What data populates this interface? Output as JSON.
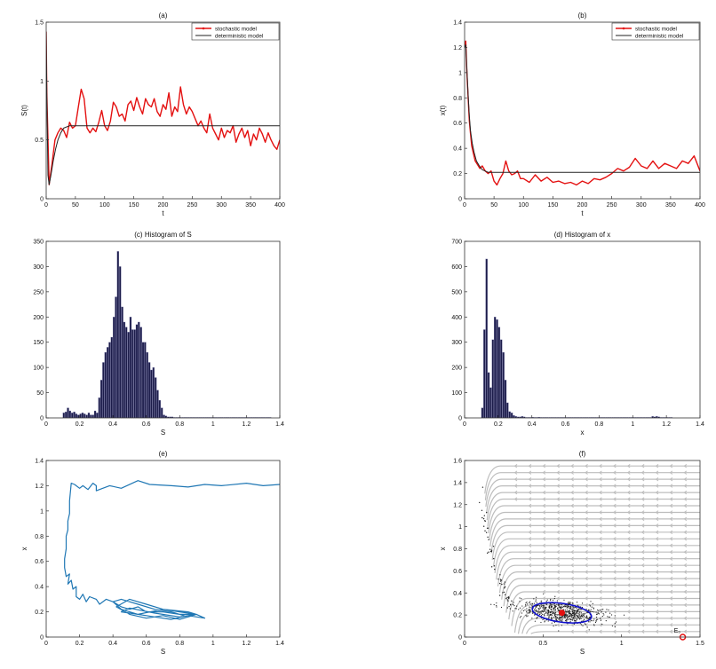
{
  "colors": {
    "stochastic": "#e41010",
    "deterministic": "#222222",
    "hist_fill": "#1c1c4a",
    "trajectory": "#1f77b4",
    "ellipse": "#1010cc",
    "stream": "#bdbdbd",
    "scatter": "#222222",
    "point": "#e41010"
  },
  "chart_data": [
    {
      "type": "line",
      "title": "(a)",
      "xlabel": "t",
      "ylabel": "S(t)",
      "xlim": [
        0,
        400
      ],
      "ylim": [
        0,
        1.5
      ],
      "xticks": [
        "0",
        "50",
        "100",
        "150",
        "200",
        "250",
        "300",
        "350",
        "400"
      ],
      "yticks": [
        "0",
        "0.5",
        "1",
        "1.5"
      ],
      "legend": {
        "position": "top-right",
        "entries": [
          "stochastic model",
          "deterministic model"
        ]
      },
      "series": [
        {
          "name": "stochastic model",
          "style": "stochastic",
          "x": [
            0,
            1,
            5,
            10,
            15,
            20,
            25,
            30,
            35,
            40,
            45,
            50,
            55,
            60,
            65,
            70,
            75,
            80,
            85,
            90,
            95,
            100,
            105,
            110,
            115,
            120,
            125,
            130,
            135,
            140,
            145,
            150,
            155,
            160,
            165,
            170,
            175,
            180,
            185,
            190,
            195,
            200,
            205,
            210,
            215,
            220,
            225,
            230,
            235,
            240,
            245,
            250,
            255,
            260,
            265,
            270,
            275,
            280,
            285,
            290,
            295,
            300,
            305,
            310,
            315,
            320,
            325,
            330,
            335,
            340,
            345,
            350,
            355,
            360,
            365,
            370,
            375,
            380,
            385,
            390,
            395,
            400
          ],
          "y": [
            1.42,
            0.9,
            0.12,
            0.3,
            0.5,
            0.56,
            0.6,
            0.58,
            0.52,
            0.65,
            0.6,
            0.62,
            0.78,
            0.93,
            0.85,
            0.6,
            0.56,
            0.6,
            0.57,
            0.65,
            0.75,
            0.62,
            0.58,
            0.66,
            0.82,
            0.78,
            0.7,
            0.72,
            0.66,
            0.8,
            0.83,
            0.75,
            0.86,
            0.78,
            0.72,
            0.85,
            0.8,
            0.78,
            0.85,
            0.74,
            0.7,
            0.8,
            0.76,
            0.9,
            0.7,
            0.78,
            0.74,
            0.95,
            0.8,
            0.72,
            0.78,
            0.74,
            0.68,
            0.62,
            0.66,
            0.6,
            0.56,
            0.72,
            0.6,
            0.55,
            0.5,
            0.6,
            0.52,
            0.58,
            0.56,
            0.62,
            0.48,
            0.55,
            0.6,
            0.52,
            0.58,
            0.45,
            0.55,
            0.5,
            0.6,
            0.55,
            0.48,
            0.56,
            0.5,
            0.45,
            0.42,
            0.5
          ]
        },
        {
          "name": "deterministic model",
          "style": "deterministic",
          "x": [
            0,
            1,
            3,
            5,
            8,
            12,
            16,
            20,
            25,
            30,
            40,
            50,
            60,
            80,
            120,
            200,
            300,
            400
          ],
          "y": [
            1.42,
            0.9,
            0.2,
            0.12,
            0.2,
            0.32,
            0.42,
            0.5,
            0.56,
            0.6,
            0.62,
            0.62,
            0.62,
            0.62,
            0.62,
            0.62,
            0.62,
            0.62
          ]
        }
      ]
    },
    {
      "type": "line",
      "title": "(b)",
      "xlabel": "t",
      "ylabel": "x(t)",
      "xlim": [
        0,
        400
      ],
      "ylim": [
        0,
        1.4
      ],
      "xticks": [
        "0",
        "50",
        "100",
        "150",
        "200",
        "250",
        "300",
        "350",
        "400"
      ],
      "yticks": [
        "0",
        "0.2",
        "0.4",
        "0.6",
        "0.8",
        "1",
        "1.2",
        "1.4"
      ],
      "legend": {
        "position": "top-right",
        "entries": [
          "stochastic model",
          "deterministic model"
        ]
      },
      "series": [
        {
          "name": "stochastic model",
          "style": "stochastic",
          "x": [
            0,
            2,
            4,
            6,
            8,
            10,
            12,
            15,
            18,
            22,
            26,
            30,
            35,
            40,
            45,
            50,
            55,
            60,
            65,
            70,
            75,
            80,
            85,
            90,
            95,
            100,
            110,
            120,
            130,
            140,
            150,
            160,
            170,
            180,
            190,
            200,
            210,
            220,
            230,
            240,
            250,
            260,
            270,
            280,
            290,
            300,
            310,
            320,
            330,
            340,
            350,
            360,
            370,
            380,
            390,
            400
          ],
          "y": [
            1.2,
            1.25,
            1.0,
            0.8,
            0.62,
            0.52,
            0.42,
            0.36,
            0.3,
            0.27,
            0.24,
            0.26,
            0.22,
            0.2,
            0.22,
            0.14,
            0.11,
            0.16,
            0.2,
            0.3,
            0.22,
            0.19,
            0.2,
            0.22,
            0.16,
            0.16,
            0.13,
            0.19,
            0.14,
            0.17,
            0.13,
            0.14,
            0.12,
            0.13,
            0.11,
            0.14,
            0.12,
            0.16,
            0.15,
            0.17,
            0.2,
            0.24,
            0.22,
            0.25,
            0.32,
            0.26,
            0.24,
            0.3,
            0.24,
            0.28,
            0.26,
            0.24,
            0.3,
            0.28,
            0.34,
            0.22
          ]
        },
        {
          "name": "deterministic model",
          "style": "deterministic",
          "x": [
            0,
            2,
            4,
            6,
            8,
            10,
            13,
            16,
            20,
            25,
            30,
            40,
            50,
            70,
            100,
            200,
            300,
            400
          ],
          "y": [
            1.2,
            1.22,
            1.02,
            0.82,
            0.66,
            0.54,
            0.44,
            0.37,
            0.3,
            0.26,
            0.23,
            0.21,
            0.21,
            0.21,
            0.21,
            0.21,
            0.21,
            0.21
          ]
        }
      ]
    },
    {
      "type": "bar",
      "title": "(c)    Histogram of S",
      "xlabel": "S",
      "ylabel": "",
      "xlim": [
        0,
        1.4
      ],
      "ylim": [
        0,
        350
      ],
      "xticks": [
        "0",
        "0.2",
        "0.4",
        "0.6",
        "0.8",
        "1",
        "1.2",
        "1.4"
      ],
      "yticks": [
        "0",
        "50",
        "100",
        "150",
        "200",
        "250",
        "300",
        "350"
      ],
      "bin_width": 0.0125,
      "bin_start": 0.1,
      "values": [
        10,
        12,
        20,
        14,
        10,
        12,
        8,
        6,
        8,
        10,
        8,
        6,
        10,
        6,
        6,
        14,
        10,
        40,
        75,
        110,
        130,
        140,
        150,
        160,
        200,
        240,
        330,
        300,
        220,
        190,
        180,
        170,
        200,
        175,
        175,
        185,
        190,
        180,
        150,
        150,
        130,
        110,
        95,
        100,
        80,
        55,
        35,
        20,
        6,
        4,
        2,
        2,
        2,
        1,
        1,
        1,
        1,
        1,
        1,
        1,
        1,
        1,
        1,
        1,
        1,
        1,
        1,
        1,
        1,
        1,
        1,
        1,
        1,
        1,
        1,
        1,
        1,
        1,
        1,
        1,
        1,
        1,
        1,
        1,
        1,
        1,
        1,
        1,
        1,
        1,
        1,
        1,
        1,
        1,
        1,
        1,
        1,
        1,
        1,
        1
      ]
    },
    {
      "type": "bar",
      "title": "(d)    Histogram of x",
      "xlabel": "x",
      "ylabel": "",
      "xlim": [
        0,
        1.4
      ],
      "ylim": [
        0,
        700
      ],
      "xticks": [
        "0",
        "0.2",
        "0.4",
        "0.6",
        "0.8",
        "1",
        "1.2",
        "1.4"
      ],
      "yticks": [
        "0",
        "100",
        "200",
        "300",
        "400",
        "500",
        "600",
        "700"
      ],
      "bin_width": 0.0125,
      "bin_start": 0.1,
      "values": [
        40,
        350,
        630,
        180,
        120,
        310,
        400,
        390,
        360,
        310,
        260,
        150,
        60,
        25,
        20,
        10,
        6,
        4,
        4,
        6,
        4,
        2,
        2,
        2,
        3,
        2,
        2,
        3,
        2,
        2,
        2,
        2,
        2,
        2,
        2,
        2,
        2,
        2,
        2,
        2,
        2,
        2,
        2,
        2,
        2,
        2,
        2,
        2,
        2,
        2,
        2,
        2,
        2,
        2,
        2,
        2,
        2,
        2,
        2,
        2,
        2,
        2,
        2,
        2,
        2,
        2,
        2,
        2,
        2,
        2,
        2,
        2,
        2,
        2,
        2,
        2,
        2,
        2,
        2,
        2,
        2,
        6,
        4,
        6,
        4,
        2,
        2,
        2,
        2,
        2,
        2
      ]
    },
    {
      "type": "line",
      "title": "(e)",
      "xlabel": "S",
      "ylabel": "x",
      "xlim": [
        0,
        1.4
      ],
      "ylim": [
        0,
        1.4
      ],
      "xticks": [
        "0",
        "0.2",
        "0.4",
        "0.6",
        "0.8",
        "1",
        "1.2",
        "1.4"
      ],
      "yticks": [
        "0",
        "0.2",
        "0.4",
        "0.6",
        "0.8",
        "1",
        "1.2",
        "1.4"
      ],
      "series": [
        {
          "name": "",
          "style": "trajectory",
          "x": [
            1.4,
            1.3,
            1.2,
            1.05,
            0.95,
            0.85,
            0.75,
            0.62,
            0.55,
            0.45,
            0.38,
            0.3,
            0.3,
            0.28,
            0.25,
            0.22,
            0.2,
            0.17,
            0.15,
            0.14,
            0.14,
            0.13,
            0.13,
            0.12,
            0.12,
            0.11,
            0.11,
            0.12,
            0.14,
            0.13,
            0.15,
            0.16,
            0.18,
            0.18,
            0.2,
            0.22,
            0.24,
            0.26,
            0.3,
            0.32,
            0.36,
            0.4,
            0.45,
            0.5,
            0.55,
            0.6,
            0.7,
            0.8,
            0.9,
            0.95,
            0.85,
            0.75,
            0.65,
            0.55,
            0.45,
            0.4,
            0.45,
            0.55,
            0.65,
            0.75,
            0.85,
            0.9,
            0.8,
            0.7,
            0.6,
            0.5,
            0.42,
            0.5,
            0.6,
            0.7,
            0.8,
            0.9,
            0.85,
            0.7,
            0.55,
            0.45,
            0.5,
            0.65,
            0.8,
            0.9
          ],
          "y": [
            1.21,
            1.2,
            1.22,
            1.2,
            1.21,
            1.19,
            1.2,
            1.21,
            1.24,
            1.18,
            1.2,
            1.16,
            1.2,
            1.22,
            1.17,
            1.2,
            1.18,
            1.21,
            1.22,
            1.08,
            0.98,
            0.92,
            0.85,
            0.8,
            0.7,
            0.62,
            0.55,
            0.48,
            0.5,
            0.42,
            0.45,
            0.38,
            0.4,
            0.32,
            0.3,
            0.34,
            0.28,
            0.32,
            0.3,
            0.26,
            0.3,
            0.28,
            0.24,
            0.22,
            0.24,
            0.2,
            0.2,
            0.18,
            0.18,
            0.15,
            0.17,
            0.14,
            0.16,
            0.18,
            0.22,
            0.28,
            0.3,
            0.26,
            0.22,
            0.2,
            0.16,
            0.18,
            0.2,
            0.22,
            0.26,
            0.3,
            0.24,
            0.18,
            0.15,
            0.17,
            0.14,
            0.18,
            0.2,
            0.22,
            0.18,
            0.2,
            0.23,
            0.19,
            0.16,
            0.18
          ]
        }
      ]
    },
    {
      "type": "scatter",
      "title": "(f)",
      "xlabel": "S",
      "ylabel": "x",
      "xlim": [
        0,
        1.5
      ],
      "ylim": [
        0,
        1.6
      ],
      "xticks": [
        "0",
        "0.5",
        "1",
        "1.5"
      ],
      "yticks": [
        "0",
        "0.2",
        "0.4",
        "0.6",
        "0.8",
        "1",
        "1.2",
        "1.4",
        "1.6"
      ],
      "scatter_cloud": {
        "center": [
          0.62,
          0.22
        ],
        "spread": [
          0.18,
          0.06
        ]
      },
      "ellipse": {
        "center": [
          0.62,
          0.22
        ],
        "rx": 0.19,
        "ry": 0.085
      },
      "points": [
        {
          "label": "E*",
          "x": 0.62,
          "y": 0.22,
          "filled": true
        },
        {
          "label": "E₀",
          "x": 1.39,
          "y": 0.0,
          "filled": false
        }
      ]
    }
  ]
}
